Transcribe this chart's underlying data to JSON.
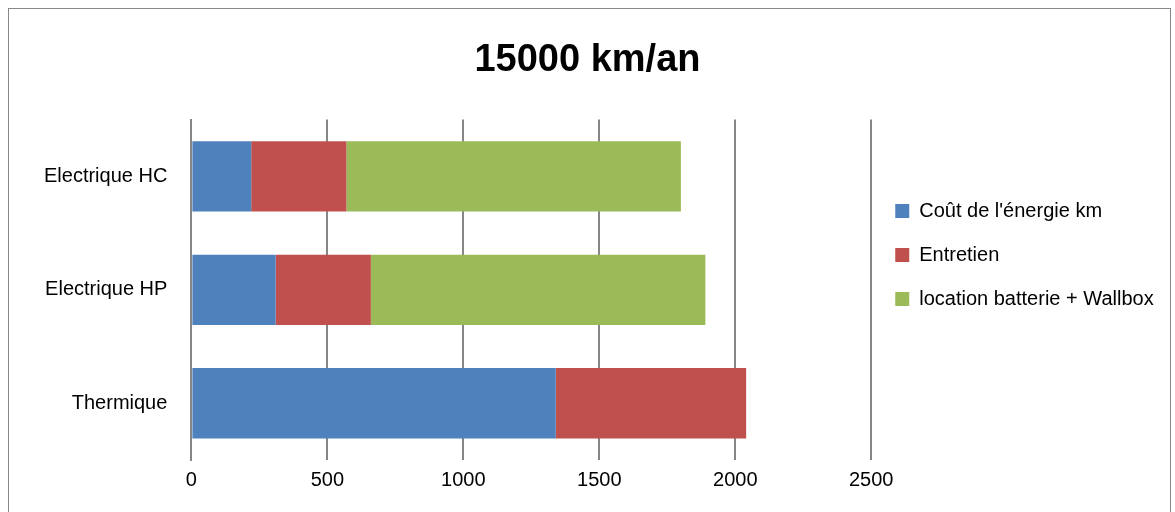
{
  "chart_data": {
    "type": "bar",
    "orientation": "horizontal",
    "stacked": true,
    "title": "15000 km/an",
    "categories": [
      "Electrique HC",
      "Electrique HP",
      "Thermique"
    ],
    "series": [
      {
        "name": "Coût de l'énergie km",
        "color": "#4f81bd",
        "values": [
          220,
          310,
          1340
        ]
      },
      {
        "name": "Entretien",
        "color": "#c0504d",
        "values": [
          350,
          350,
          700
        ]
      },
      {
        "name": "location batterie + Wallbox",
        "color": "#9bbb59",
        "values": [
          1230,
          1230,
          null
        ]
      }
    ],
    "xlim": [
      0,
      2500
    ],
    "xticks": [
      0,
      500,
      1000,
      1500,
      2000,
      2500
    ],
    "grid": "x",
    "legend": "right"
  }
}
